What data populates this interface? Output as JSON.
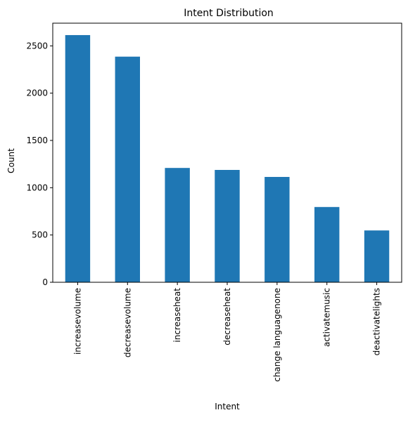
{
  "chart_data": {
    "type": "bar",
    "title": "Intent Distribution",
    "xlabel": "Intent",
    "ylabel": "Count",
    "categories": [
      "increasevolume",
      "decreasevolume",
      "increaseheat",
      "decreaseheat",
      "change languagenone",
      "activatemusic",
      "deactivatelights"
    ],
    "values": [
      2614,
      2386,
      1209,
      1188,
      1114,
      796,
      548
    ],
    "ylim": [
      0,
      2740
    ],
    "yticks": [
      0,
      500,
      1000,
      1500,
      2000,
      2500
    ],
    "grid": false,
    "legend": "none",
    "bar_color": "#1f77b4"
  }
}
